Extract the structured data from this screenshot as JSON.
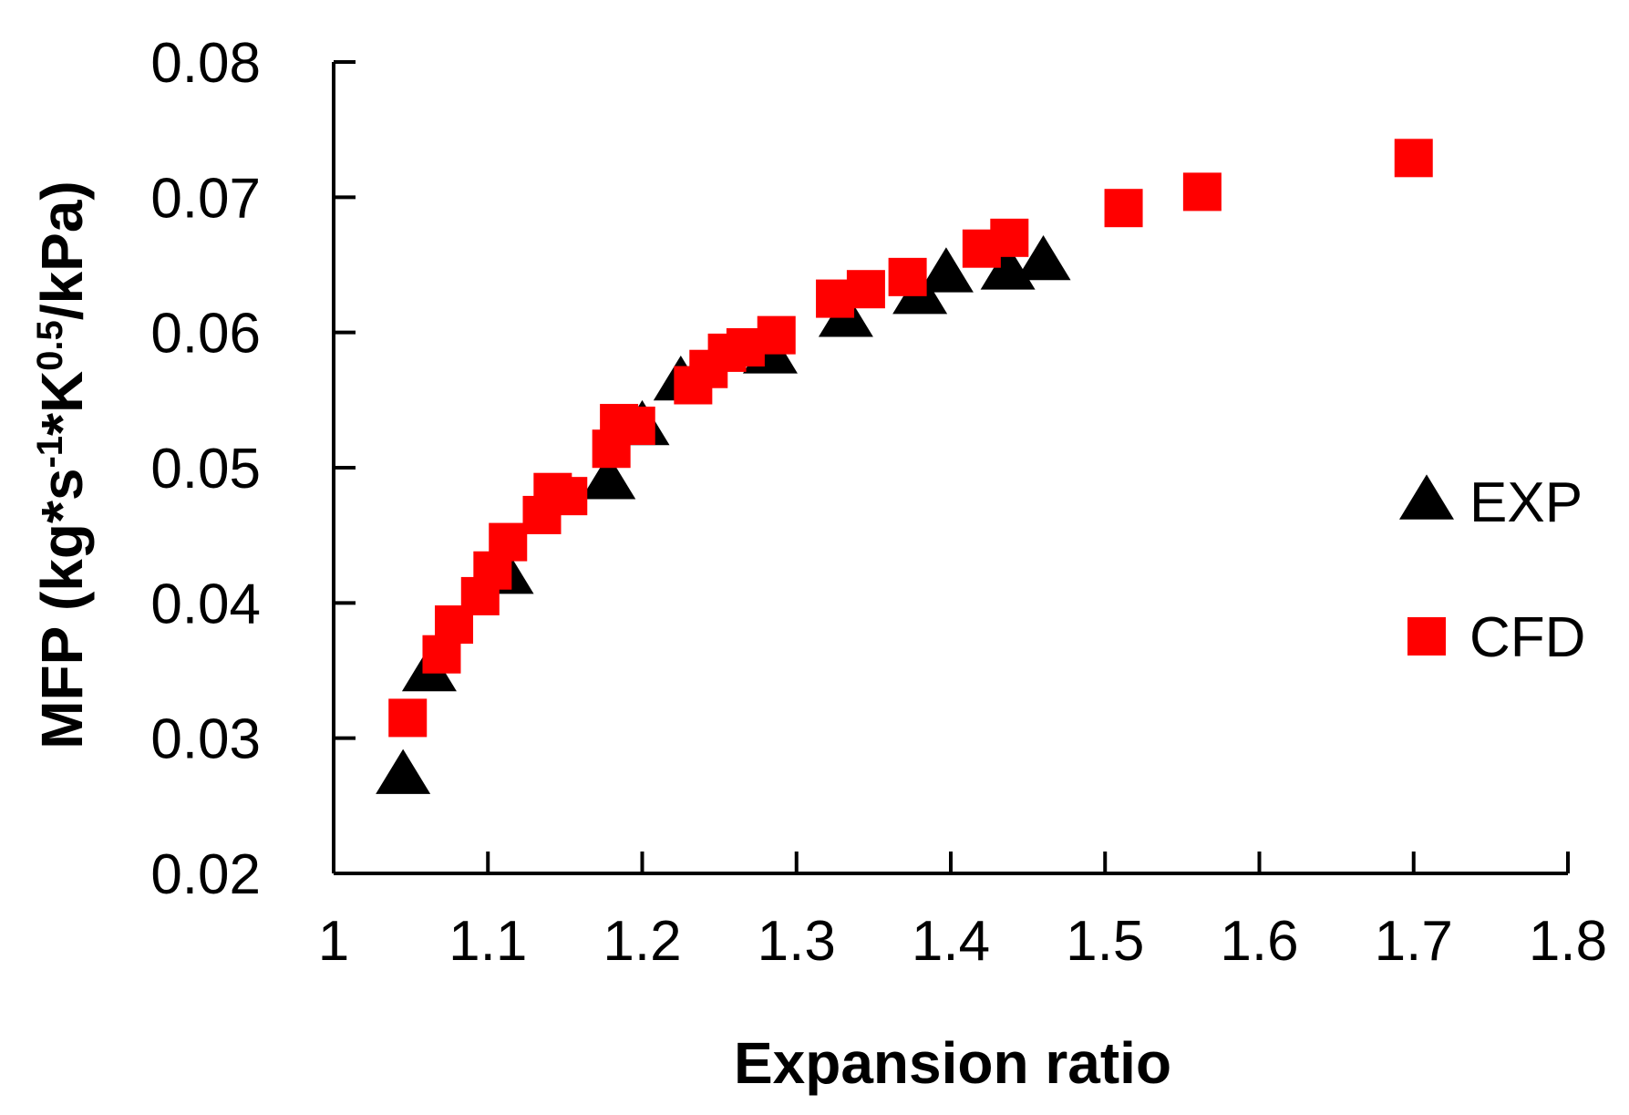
{
  "chart_data": {
    "type": "scatter",
    "title": "",
    "xlabel": "Expansion ratio",
    "ylabel": {
      "prefix": "MFP (kg*s",
      "sup1": "-1",
      "mid": "*K",
      "sup2": "0.5",
      "suffix": "/kPa)"
    },
    "xlim": [
      1,
      1.8
    ],
    "ylim": [
      0.02,
      0.08
    ],
    "x_ticks": [
      {
        "value": 1,
        "label": "1"
      },
      {
        "value": 1.1,
        "label": "1.1"
      },
      {
        "value": 1.2,
        "label": "1.2"
      },
      {
        "value": 1.3,
        "label": "1.3"
      },
      {
        "value": 1.4,
        "label": "1.4"
      },
      {
        "value": 1.5,
        "label": "1.5"
      },
      {
        "value": 1.6,
        "label": "1.6"
      },
      {
        "value": 1.7,
        "label": "1.7"
      },
      {
        "value": 1.8,
        "label": "1.8"
      }
    ],
    "y_ticks": [
      {
        "value": 0.02,
        "label": "0.02"
      },
      {
        "value": 0.03,
        "label": "0.03"
      },
      {
        "value": 0.04,
        "label": "0.04"
      },
      {
        "value": 0.05,
        "label": "0.05"
      },
      {
        "value": 0.06,
        "label": "0.06"
      },
      {
        "value": 0.07,
        "label": "0.07"
      },
      {
        "value": 0.08,
        "label": "0.08"
      }
    ],
    "grid": false,
    "legend_position": "right",
    "series": [
      {
        "name": "EXP",
        "marker": "triangle",
        "color": "#000000",
        "points": [
          {
            "x": 1.045,
            "y": 0.0272
          },
          {
            "x": 1.062,
            "y": 0.0348
          },
          {
            "x": 1.112,
            "y": 0.042
          },
          {
            "x": 1.178,
            "y": 0.049
          },
          {
            "x": 1.2,
            "y": 0.053
          },
          {
            "x": 1.225,
            "y": 0.0563
          },
          {
            "x": 1.283,
            "y": 0.0583
          },
          {
            "x": 1.332,
            "y": 0.061
          },
          {
            "x": 1.38,
            "y": 0.0627
          },
          {
            "x": 1.397,
            "y": 0.0643
          },
          {
            "x": 1.437,
            "y": 0.0645
          },
          {
            "x": 1.46,
            "y": 0.0652
          }
        ]
      },
      {
        "name": "CFD",
        "marker": "square",
        "color": "#ff0000",
        "points": [
          {
            "x": 1.048,
            "y": 0.0315
          },
          {
            "x": 1.07,
            "y": 0.0362
          },
          {
            "x": 1.078,
            "y": 0.0384
          },
          {
            "x": 1.095,
            "y": 0.0405
          },
          {
            "x": 1.103,
            "y": 0.0424
          },
          {
            "x": 1.113,
            "y": 0.0445
          },
          {
            "x": 1.135,
            "y": 0.0465
          },
          {
            "x": 1.142,
            "y": 0.0482
          },
          {
            "x": 1.152,
            "y": 0.0479
          },
          {
            "x": 1.18,
            "y": 0.0514
          },
          {
            "x": 1.185,
            "y": 0.0533
          },
          {
            "x": 1.196,
            "y": 0.0531
          },
          {
            "x": 1.233,
            "y": 0.0561
          },
          {
            "x": 1.243,
            "y": 0.0573
          },
          {
            "x": 1.255,
            "y": 0.0585
          },
          {
            "x": 1.267,
            "y": 0.0589
          },
          {
            "x": 1.287,
            "y": 0.0598
          },
          {
            "x": 1.325,
            "y": 0.0625
          },
          {
            "x": 1.345,
            "y": 0.0632
          },
          {
            "x": 1.372,
            "y": 0.0641
          },
          {
            "x": 1.42,
            "y": 0.0662
          },
          {
            "x": 1.438,
            "y": 0.067
          },
          {
            "x": 1.512,
            "y": 0.0692
          },
          {
            "x": 1.563,
            "y": 0.0704
          },
          {
            "x": 1.7,
            "y": 0.0729
          }
        ]
      }
    ]
  }
}
